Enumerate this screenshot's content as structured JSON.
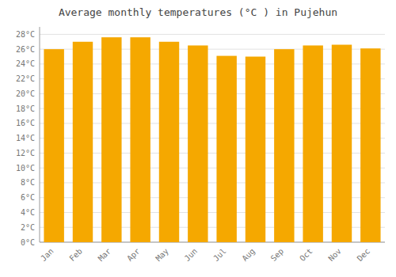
{
  "chart_data": {
    "type": "bar",
    "title": "Average monthly temperatures (°C ) in Pujehun",
    "categories": [
      "Jan",
      "Feb",
      "Mar",
      "Apr",
      "May",
      "Jun",
      "Jul",
      "Aug",
      "Sep",
      "Oct",
      "Nov",
      "Dec"
    ],
    "values": [
      26.0,
      27.0,
      27.6,
      27.6,
      27.0,
      26.5,
      25.1,
      25.0,
      26.0,
      26.5,
      26.6,
      26.1
    ],
    "color": "#F5A800",
    "ylim": [
      0,
      29
    ],
    "yticks": [
      {
        "value": 0,
        "label": "0°C"
      },
      {
        "value": 2,
        "label": "2°C"
      },
      {
        "value": 4,
        "label": "4°C"
      },
      {
        "value": 6,
        "label": "6°C"
      },
      {
        "value": 8,
        "label": "8°C"
      },
      {
        "value": 10,
        "label": "10°C"
      },
      {
        "value": 12,
        "label": "12°C"
      },
      {
        "value": 14,
        "label": "14°C"
      },
      {
        "value": 16,
        "label": "16°C"
      },
      {
        "value": 18,
        "label": "18°C"
      },
      {
        "value": 20,
        "label": "20°C"
      },
      {
        "value": 22,
        "label": "22°C"
      },
      {
        "value": 24,
        "label": "24°C"
      },
      {
        "value": 26,
        "label": "26°C"
      },
      {
        "value": 28,
        "label": "28°C"
      }
    ],
    "grid": true
  }
}
